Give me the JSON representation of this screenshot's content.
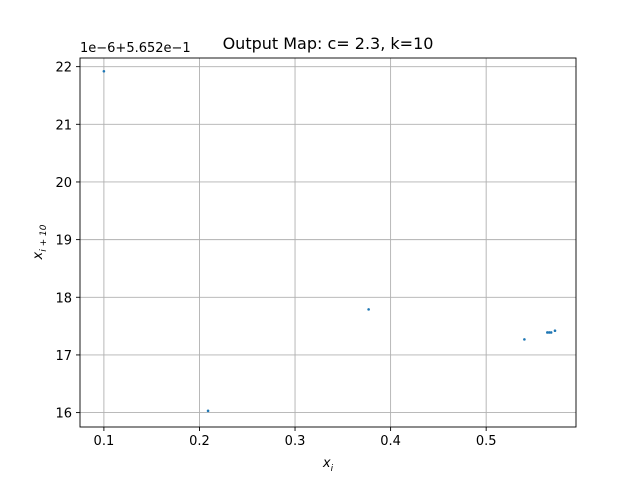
{
  "chart_data": {
    "type": "scatter",
    "title": "Output Map: c= 2.3, k=10",
    "xlabel_base": "x",
    "xlabel_sub": "i",
    "ylabel_base": "x",
    "ylabel_sub": "i + 10",
    "y_offset_label": "1e−6+5.652e−1",
    "xlim": [
      0.075,
      0.594
    ],
    "ylim": [
      15.75,
      22.15
    ],
    "xticks": [
      0.1,
      0.2,
      0.3,
      0.4,
      0.5
    ],
    "xtick_labels": [
      "0.1",
      "0.2",
      "0.3",
      "0.4",
      "0.5"
    ],
    "yticks": [
      16,
      17,
      18,
      19,
      20,
      21,
      22
    ],
    "ytick_labels": [
      "16",
      "17",
      "18",
      "19",
      "20",
      "21",
      "22"
    ],
    "grid": true,
    "marker_color": "#1f77b4",
    "points": [
      {
        "x": 0.1,
        "y": 21.92
      },
      {
        "x": 0.209,
        "y": 16.03
      },
      {
        "x": 0.377,
        "y": 17.79
      },
      {
        "x": 0.54,
        "y": 17.27
      },
      {
        "x": 0.564,
        "y": 17.39
      },
      {
        "x": 0.566,
        "y": 17.39
      },
      {
        "x": 0.568,
        "y": 17.39
      },
      {
        "x": 0.572,
        "y": 17.42
      }
    ]
  }
}
